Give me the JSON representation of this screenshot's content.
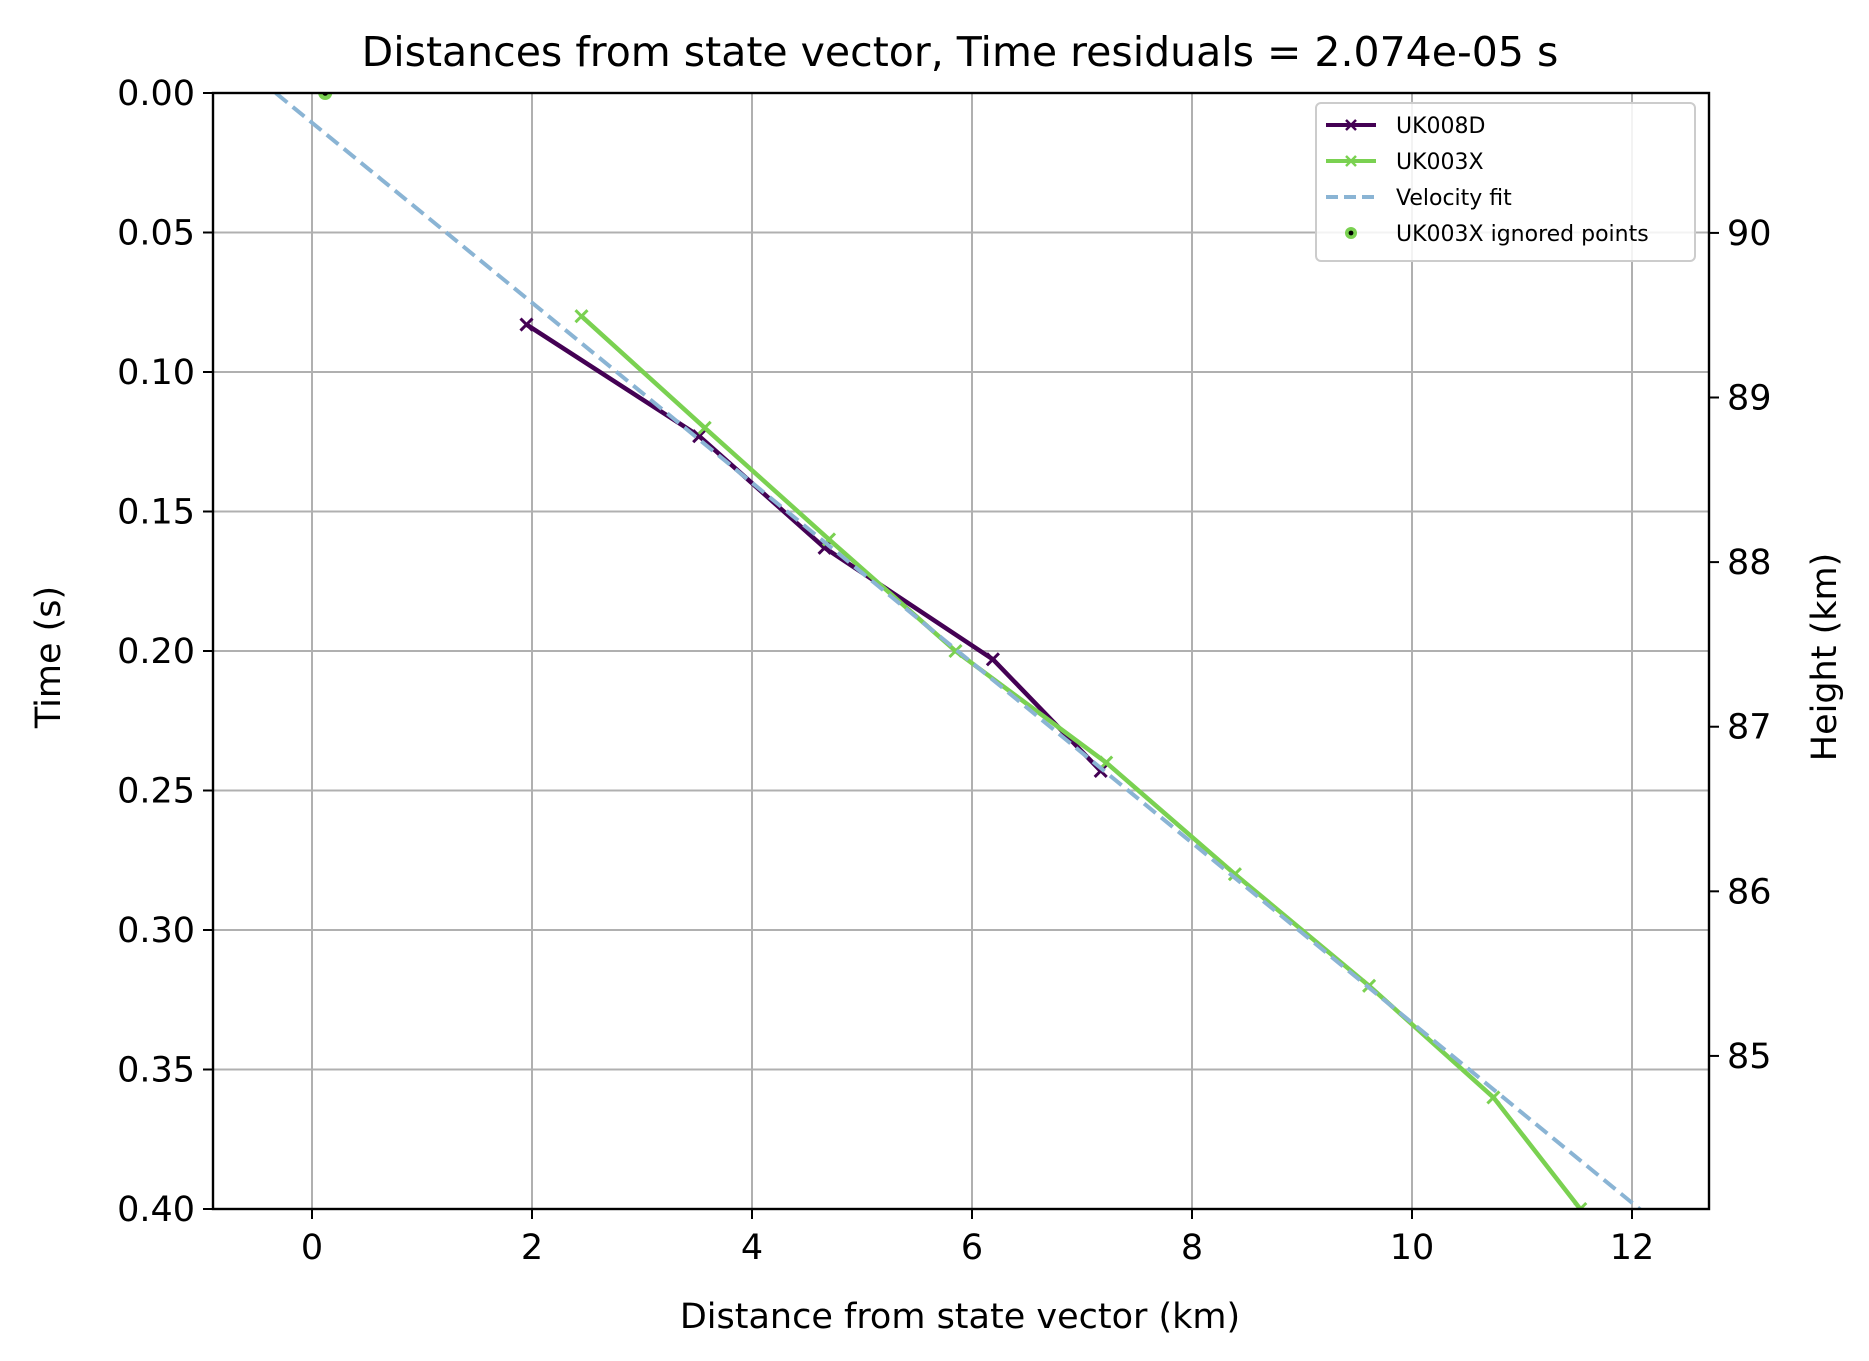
{
  "chart_data": {
    "type": "line",
    "title": "Distances from state vector, Time residuals = 2.074e-05 s",
    "xlabel": "Distance from state vector (km)",
    "ylabel": "Time (s)",
    "y2label": "Height (km)",
    "xlim": [
      -0.9,
      12.7
    ],
    "ylim": [
      0.4,
      0.0
    ],
    "y_inverted": true,
    "xticks": [
      "0",
      "2",
      "4",
      "6",
      "8",
      "10",
      "12"
    ],
    "yticks": [
      "0.00",
      "0.05",
      "0.10",
      "0.15",
      "0.20",
      "0.25",
      "0.30",
      "0.35",
      "0.40"
    ],
    "y2ticks": [
      "85",
      "86",
      "87",
      "88",
      "89",
      "90"
    ],
    "y2lim": [
      84.07,
      90.85
    ],
    "grid": true,
    "legend_position": "upper right",
    "series": [
      {
        "name": "UK008D",
        "color": "#440154",
        "marker": "x",
        "points": [
          {
            "x": 1.95,
            "y": 0.083
          },
          {
            "x": 3.52,
            "y": 0.123
          },
          {
            "x": 4.66,
            "y": 0.163
          },
          {
            "x": 6.19,
            "y": 0.203
          },
          {
            "x": 7.17,
            "y": 0.243
          }
        ]
      },
      {
        "name": "UK003X",
        "color": "#7ad151",
        "marker": "x",
        "points": [
          {
            "x": 2.45,
            "y": 0.08
          },
          {
            "x": 3.57,
            "y": 0.12
          },
          {
            "x": 4.7,
            "y": 0.16
          },
          {
            "x": 5.85,
            "y": 0.2
          },
          {
            "x": 7.22,
            "y": 0.24
          },
          {
            "x": 8.39,
            "y": 0.28
          },
          {
            "x": 9.61,
            "y": 0.32
          },
          {
            "x": 10.74,
            "y": 0.36
          },
          {
            "x": 11.53,
            "y": 0.4
          }
        ]
      },
      {
        "name": "Velocity fit",
        "color": "#8ab4d4",
        "style": "dashed",
        "points": [
          {
            "x": -0.33,
            "y": 0.0
          },
          {
            "x": 12.1,
            "y": 0.401
          }
        ]
      },
      {
        "name": "UK003X ignored points",
        "color": "#7ad151",
        "marker": "dot",
        "points": [
          {
            "x": 0.12,
            "y": 0.0
          }
        ]
      }
    ]
  }
}
